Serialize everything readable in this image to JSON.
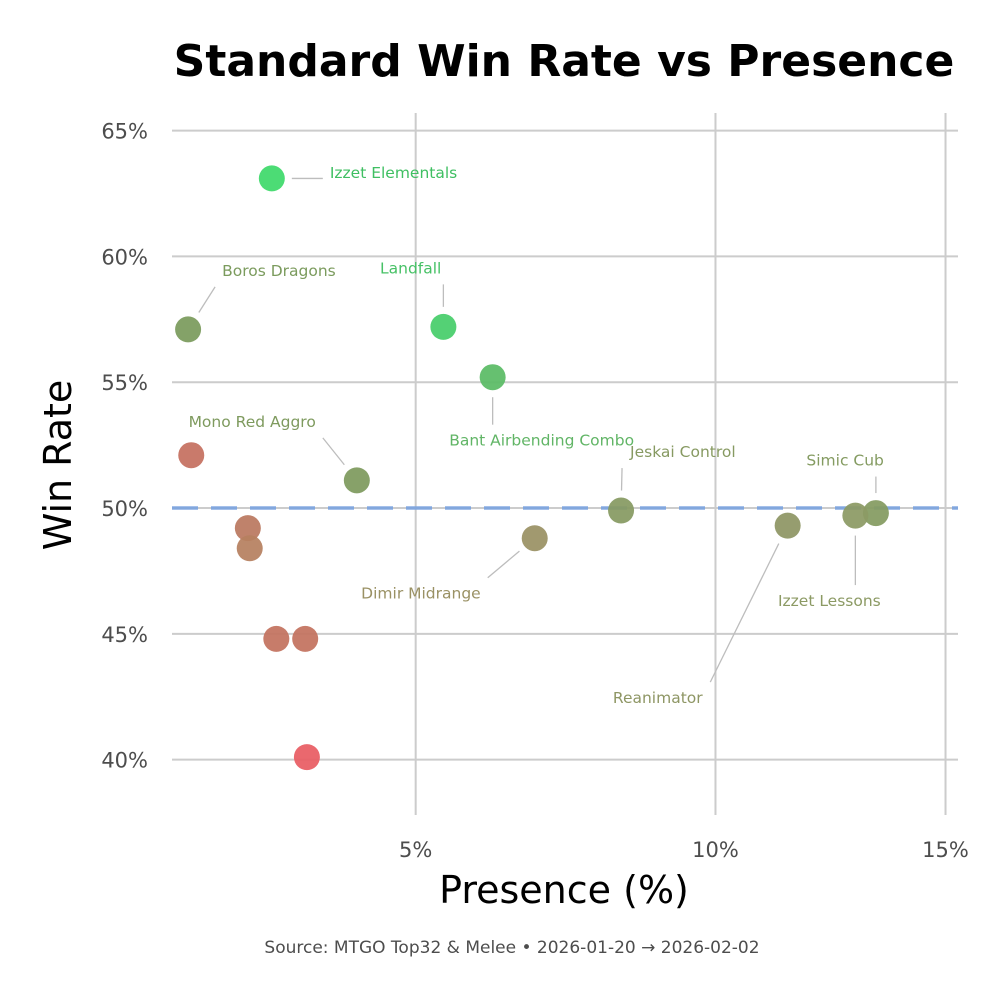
{
  "chart_data": {
    "type": "scatter",
    "title": "Standard Win Rate vs Presence",
    "xlabel": "Presence (%)",
    "ylabel": "Win Rate",
    "x_scale": "sqrt",
    "xlim": [
      2.2,
      15.3
    ],
    "ylim": [
      37.8,
      65.7
    ],
    "x_ticks": [
      5,
      10,
      15
    ],
    "x_tick_labels": [
      "5%",
      "10%",
      "15%"
    ],
    "y_ticks": [
      40,
      45,
      50,
      55,
      60,
      65
    ],
    "y_tick_labels": [
      "40%",
      "45%",
      "50%",
      "55%",
      "60%",
      "65%"
    ],
    "reference_line": {
      "y": 50,
      "style": "dashed",
      "color": "#7ba3df"
    },
    "grid": true,
    "caption": "Source: MTGO Top32 & Melee  •  2026-01-20 → 2026-02-02",
    "points": [
      {
        "name": "Izzet Elementals",
        "x": 3.21,
        "y": 63.1,
        "color": "#3ed96a",
        "label_color": "#3fbf62",
        "label_anchor": "start",
        "label_dx": 58,
        "label_dy": -5
      },
      {
        "name": "Boros Dragons",
        "x": 2.35,
        "y": 57.1,
        "color": "#7b9b5d",
        "label_color": "#7b9b5d",
        "label_anchor": "start",
        "label_dx": 34,
        "label_dy": -58
      },
      {
        "name": "Landfall",
        "x": 5.39,
        "y": 57.2,
        "color": "#47cd6b",
        "label_color": "#47c166",
        "label_anchor": "end",
        "label_dx": -2,
        "label_dy": -58
      },
      {
        "name": "Bant Airbending Combo",
        "x": 6.12,
        "y": 55.2,
        "color": "#5abb65",
        "label_color": "#61b566",
        "label_anchor": "middle",
        "label_dx": 49,
        "label_dy": 64
      },
      {
        "name": "Mono Red Aggro",
        "x": 4.22,
        "y": 51.1,
        "color": "#7e9a5e",
        "label_color": "#7e9a5e",
        "label_anchor": "end",
        "label_dx": -41,
        "label_dy": -58
      },
      {
        "name": "Jeskai Control",
        "x": 8.24,
        "y": 49.9,
        "color": "#879a62",
        "label_color": "#879a62",
        "label_anchor": "start",
        "label_dx": 9,
        "label_dy": -58
      },
      {
        "name": "Simic Cub",
        "x": 13.38,
        "y": 49.8,
        "color": "#849b61",
        "label_color": "#849b61",
        "label_anchor": "end",
        "label_dx": 8,
        "label_dy": -52
      },
      {
        "name": "Izzet Lessons",
        "x": 12.92,
        "y": 49.7,
        "color": "#8c9a64",
        "label_color": "#8c9a64",
        "label_anchor": "middle",
        "label_dx": -26,
        "label_dy": 86
      },
      {
        "name": "Reanimator",
        "x": 11.46,
        "y": 49.3,
        "color": "#8e9664",
        "label_color": "#8e9664",
        "label_anchor": "end",
        "label_dx": -85,
        "label_dy": 173
      },
      {
        "name": "Dimir Midrange",
        "x": 6.78,
        "y": 48.8,
        "color": "#9a9164",
        "label_color": "#9a9164",
        "label_anchor": "end",
        "label_dx": -54,
        "label_dy": 56
      },
      {
        "name": "",
        "x": 2.38,
        "y": 52.1,
        "color": "#c57060"
      },
      {
        "name": "",
        "x": 2.95,
        "y": 49.2,
        "color": "#ba7860"
      },
      {
        "name": "",
        "x": 2.97,
        "y": 48.4,
        "color": "#b68060"
      },
      {
        "name": "",
        "x": 3.26,
        "y": 44.8,
        "color": "#c3725f"
      },
      {
        "name": "",
        "x": 3.59,
        "y": 44.8,
        "color": "#c3725f"
      },
      {
        "name": "",
        "x": 3.61,
        "y": 40.1,
        "color": "#e85d63"
      }
    ]
  }
}
